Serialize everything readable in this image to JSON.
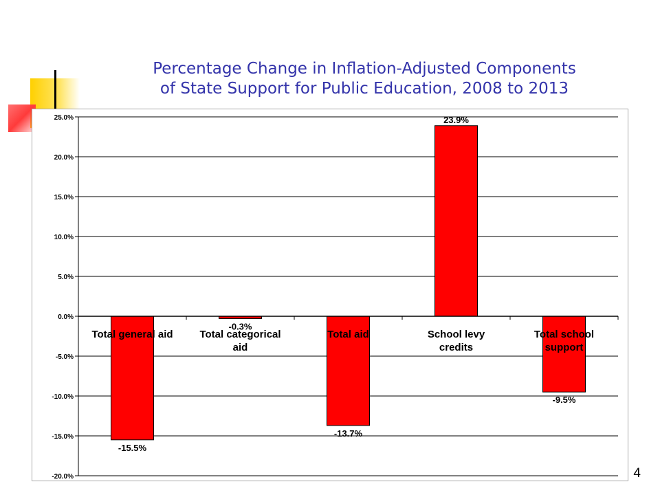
{
  "slide": {
    "title_line1": "Percentage Change in Inflation-Adjusted Components",
    "title_line2": "of State Support for Public Education, 2008 to 2013",
    "page_number": "4"
  },
  "colors": {
    "title": "#3333aa",
    "bar_fill": "#ff0000",
    "bar_stroke": "#000000",
    "grid": "#000000",
    "deco_yellow": "#ffd000",
    "deco_red": "#ff3a3a"
  },
  "chart_data": {
    "type": "bar",
    "title": "",
    "xlabel": "",
    "ylabel": "",
    "categories": [
      [
        "Total general aid"
      ],
      [
        "Total categorical",
        "aid"
      ],
      [
        "Total aid"
      ],
      [
        "School levy",
        "credits"
      ],
      [
        "Total school",
        "support"
      ]
    ],
    "values": [
      -15.5,
      -0.3,
      -13.7,
      23.9,
      -9.5
    ],
    "data_labels": [
      "-15.5%",
      "-0.3%",
      "-13.7%",
      "23.9%",
      "-9.5%"
    ],
    "ylim": [
      -20,
      25
    ],
    "yticks": [
      25,
      20,
      15,
      10,
      5,
      0,
      -5,
      -10,
      -15,
      -20
    ],
    "ytick_labels": [
      "25.0%",
      "20.0%",
      "15.0%",
      "10.0%",
      "5.0%",
      "0.0%",
      "-5.0%",
      "-10.0%",
      "-15.0%",
      "-20.0%"
    ],
    "grid": true,
    "legend": "none"
  }
}
